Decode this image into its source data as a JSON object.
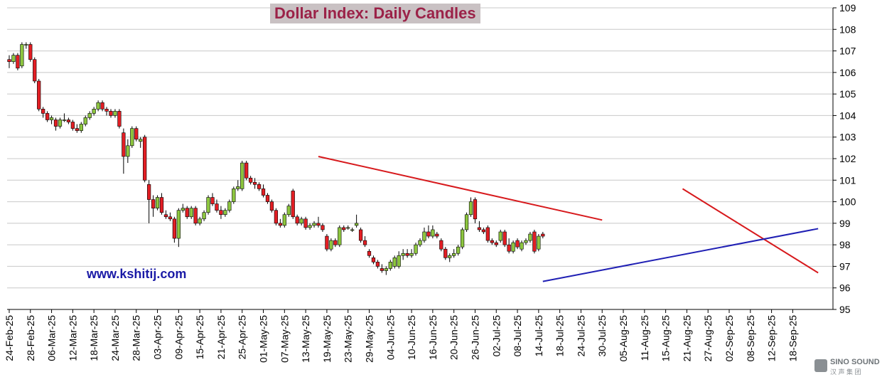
{
  "chart_data": {
    "type": "candlestick",
    "title": "Dollar Index: Daily Candles",
    "y_ticks": [
      95,
      96,
      97,
      98,
      99,
      100,
      101,
      102,
      103,
      104,
      105,
      106,
      107,
      108,
      109
    ],
    "ylim": [
      95,
      109
    ],
    "y_axis_position": "right",
    "x_tick_labels": [
      "24-Feb-25",
      "28-Feb-25",
      "06-Mar-25",
      "12-Mar-25",
      "18-Mar-25",
      "24-Mar-25",
      "28-Mar-25",
      "03-Apr-25",
      "09-Apr-25",
      "15-Apr-25",
      "21-Apr-25",
      "25-Apr-25",
      "01-May-25",
      "07-May-25",
      "13-May-25",
      "19-May-25",
      "23-May-25",
      "29-May-25",
      "04-Jun-25",
      "10-Jun-25",
      "16-Jun-25",
      "20-Jun-25",
      "26-Jun-25",
      "02-Jul-25",
      "08-Jul-25",
      "14-Jul-25",
      "18-Jul-25",
      "24-Jul-25",
      "30-Jul-25",
      "05-Aug-25",
      "11-Aug-25",
      "15-Aug-25",
      "21-Aug-25",
      "27-Aug-25",
      "02-Sep-25",
      "08-Sep-25",
      "12-Sep-25",
      "18-Sep-25"
    ],
    "grid": true,
    "colors": {
      "up": "#8dc63f",
      "down": "#e31e24",
      "resistance": "#d7191c",
      "support": "#1f1fb4",
      "grid": "#c8c8c8"
    },
    "candles": [
      [
        106.6,
        106.8,
        106.2,
        106.5
      ],
      [
        106.5,
        106.9,
        106.4,
        106.8
      ],
      [
        106.8,
        106.9,
        106.1,
        106.2
      ],
      [
        106.3,
        107.4,
        106.2,
        107.3
      ],
      [
        107.3,
        107.4,
        107.1,
        107.3
      ],
      [
        107.3,
        107.4,
        106.5,
        106.6
      ],
      [
        106.6,
        106.7,
        105.5,
        105.6
      ],
      [
        105.6,
        105.7,
        104.2,
        104.3
      ],
      [
        104.3,
        104.4,
        103.9,
        104.1
      ],
      [
        104.1,
        104.2,
        103.7,
        103.8
      ],
      [
        103.8,
        104.0,
        103.6,
        103.9
      ],
      [
        103.8,
        103.9,
        103.3,
        103.5
      ],
      [
        103.5,
        103.9,
        103.4,
        103.8
      ],
      [
        103.8,
        104.1,
        103.7,
        103.8
      ],
      [
        103.8,
        103.9,
        103.6,
        103.7
      ],
      [
        103.7,
        103.8,
        103.3,
        103.4
      ],
      [
        103.4,
        103.6,
        103.2,
        103.3
      ],
      [
        103.3,
        103.7,
        103.2,
        103.6
      ],
      [
        103.6,
        104.0,
        103.5,
        103.9
      ],
      [
        103.9,
        104.2,
        103.8,
        104.1
      ],
      [
        104.1,
        104.4,
        104.0,
        104.3
      ],
      [
        104.3,
        104.7,
        104.2,
        104.6
      ],
      [
        104.6,
        104.7,
        104.2,
        104.3
      ],
      [
        104.3,
        104.4,
        104.0,
        104.2
      ],
      [
        104.2,
        104.3,
        103.9,
        104.0
      ],
      [
        104.0,
        104.3,
        103.9,
        104.2
      ],
      [
        104.2,
        104.3,
        103.4,
        103.5
      ],
      [
        103.2,
        103.4,
        101.3,
        102.1
      ],
      [
        102.1,
        102.9,
        101.8,
        102.6
      ],
      [
        102.6,
        103.5,
        102.5,
        103.4
      ],
      [
        103.4,
        103.5,
        102.8,
        102.9
      ],
      [
        102.8,
        103.0,
        102.5,
        102.9
      ],
      [
        103.0,
        103.1,
        100.9,
        101.0
      ],
      [
        100.8,
        101.0,
        99.0,
        100.1
      ],
      [
        100.1,
        100.3,
        99.3,
        99.7
      ],
      [
        99.7,
        100.3,
        99.6,
        100.2
      ],
      [
        100.2,
        100.4,
        99.4,
        99.5
      ],
      [
        99.4,
        99.6,
        99.2,
        99.3
      ],
      [
        99.3,
        99.5,
        99.1,
        99.2
      ],
      [
        99.2,
        99.3,
        98.1,
        98.3
      ],
      [
        98.3,
        99.7,
        97.9,
        99.6
      ],
      [
        99.6,
        99.9,
        99.5,
        99.7
      ],
      [
        99.7,
        99.8,
        99.2,
        99.3
      ],
      [
        99.3,
        99.8,
        99.2,
        99.7
      ],
      [
        99.7,
        99.8,
        98.9,
        99.0
      ],
      [
        99.0,
        99.3,
        98.9,
        99.2
      ],
      [
        99.2,
        99.6,
        99.1,
        99.5
      ],
      [
        99.5,
        100.3,
        99.4,
        100.2
      ],
      [
        100.2,
        100.4,
        99.8,
        99.9
      ],
      [
        99.9,
        100.1,
        99.5,
        99.6
      ],
      [
        99.6,
        99.8,
        99.2,
        99.4
      ],
      [
        99.4,
        99.7,
        99.3,
        99.6
      ],
      [
        99.6,
        100.1,
        99.5,
        100.0
      ],
      [
        100.0,
        100.7,
        99.9,
        100.6
      ],
      [
        100.6,
        101.0,
        100.5,
        100.7
      ],
      [
        100.6,
        101.9,
        100.5,
        101.8
      ],
      [
        101.8,
        101.9,
        101.0,
        101.1
      ],
      [
        101.1,
        101.2,
        100.8,
        100.9
      ],
      [
        100.9,
        101.1,
        100.6,
        100.8
      ],
      [
        100.8,
        100.9,
        100.5,
        100.6
      ],
      [
        100.6,
        100.8,
        100.2,
        100.3
      ],
      [
        100.3,
        100.4,
        99.9,
        100.0
      ],
      [
        100.0,
        100.1,
        99.5,
        99.6
      ],
      [
        99.6,
        99.7,
        98.9,
        99.0
      ],
      [
        99.0,
        99.2,
        98.8,
        98.9
      ],
      [
        98.9,
        99.5,
        98.8,
        99.4
      ],
      [
        99.4,
        99.9,
        99.3,
        99.8
      ],
      [
        100.5,
        100.6,
        99.2,
        99.3
      ],
      [
        99.3,
        99.4,
        98.9,
        99.0
      ],
      [
        99.0,
        99.3,
        98.9,
        99.2
      ],
      [
        99.2,
        99.3,
        98.7,
        98.8
      ],
      [
        98.8,
        99.0,
        98.7,
        98.9
      ],
      [
        98.9,
        99.1,
        98.8,
        99.0
      ],
      [
        99.0,
        99.3,
        98.8,
        98.9
      ],
      [
        98.9,
        99.0,
        98.6,
        98.7
      ],
      [
        98.4,
        98.5,
        97.7,
        97.8
      ],
      [
        97.8,
        98.3,
        97.7,
        98.2
      ],
      [
        98.2,
        98.3,
        97.9,
        98.0
      ],
      [
        98.0,
        98.9,
        97.9,
        98.8
      ],
      [
        98.8,
        98.9,
        98.6,
        98.7
      ],
      [
        98.8,
        98.9,
        98.7,
        98.8
      ],
      [
        98.7,
        98.8,
        98.6,
        98.7
      ],
      [
        98.9,
        99.4,
        98.8,
        99.0
      ],
      [
        98.7,
        98.8,
        98.1,
        98.2
      ],
      [
        98.2,
        98.4,
        97.9,
        98.0
      ],
      [
        97.7,
        97.8,
        97.4,
        97.5
      ],
      [
        97.4,
        97.5,
        97.1,
        97.2
      ],
      [
        97.2,
        97.3,
        96.9,
        97.0
      ],
      [
        96.9,
        97.1,
        96.7,
        96.8
      ],
      [
        96.8,
        97.0,
        96.6,
        96.9
      ],
      [
        96.9,
        97.3,
        96.8,
        97.2
      ],
      [
        97.0,
        97.5,
        96.9,
        97.4
      ],
      [
        97.0,
        97.7,
        96.9,
        97.5
      ],
      [
        97.5,
        97.8,
        97.3,
        97.6
      ],
      [
        97.6,
        97.8,
        97.4,
        97.5
      ],
      [
        97.5,
        97.8,
        97.4,
        97.6
      ],
      [
        97.6,
        98.1,
        97.5,
        98.0
      ],
      [
        98.0,
        98.3,
        97.9,
        98.2
      ],
      [
        98.2,
        98.8,
        98.1,
        98.6
      ],
      [
        98.6,
        98.9,
        98.3,
        98.4
      ],
      [
        98.4,
        98.9,
        98.3,
        98.7
      ],
      [
        98.5,
        98.6,
        98.3,
        98.4
      ],
      [
        98.2,
        98.3,
        97.7,
        97.8
      ],
      [
        97.8,
        97.9,
        97.3,
        97.4
      ],
      [
        97.4,
        97.6,
        97.2,
        97.5
      ],
      [
        97.5,
        97.8,
        97.4,
        97.6
      ],
      [
        97.6,
        98.0,
        97.5,
        97.9
      ],
      [
        97.9,
        98.8,
        97.8,
        98.7
      ],
      [
        98.7,
        99.5,
        98.6,
        99.4
      ],
      [
        99.4,
        100.2,
        99.3,
        100.0
      ],
      [
        100.1,
        100.2,
        99.0,
        99.2
      ],
      [
        98.8,
        99.1,
        98.6,
        98.7
      ],
      [
        98.7,
        98.8,
        98.5,
        98.6
      ],
      [
        98.8,
        98.9,
        98.1,
        98.2
      ],
      [
        98.2,
        98.3,
        98.0,
        98.1
      ],
      [
        98.1,
        98.2,
        97.9,
        98.0
      ],
      [
        98.2,
        98.7,
        98.1,
        98.6
      ],
      [
        98.6,
        98.7,
        97.9,
        98.0
      ],
      [
        98.0,
        98.3,
        97.6,
        97.7
      ],
      [
        97.7,
        98.2,
        97.6,
        98.1
      ],
      [
        98.2,
        98.3,
        97.8,
        97.9
      ],
      [
        97.8,
        98.2,
        97.7,
        98.1
      ],
      [
        98.1,
        98.3,
        98.0,
        98.2
      ],
      [
        98.2,
        98.6,
        98.1,
        98.5
      ],
      [
        98.6,
        98.7,
        97.6,
        97.7
      ],
      [
        97.8,
        98.5,
        97.7,
        98.4
      ],
      [
        98.5,
        98.6,
        98.3,
        98.4
      ]
    ],
    "trendlines": [
      {
        "role": "resistance",
        "from": {
          "candle": 73,
          "price": 102.1
        },
        "to": {
          "candle": 140,
          "price": 99.15
        }
      },
      {
        "role": "resistance",
        "from": {
          "candle": 159,
          "price": 100.6
        },
        "to": {
          "candle": 191,
          "price": 96.7
        }
      },
      {
        "role": "support",
        "from": {
          "candle": 126,
          "price": 96.3
        },
        "to": {
          "candle": 191,
          "price": 98.75
        }
      }
    ]
  },
  "watermark_url": "www.kshitij.com",
  "logo": {
    "brand": "SINO SOUND",
    "sub": "汉 声 集 团"
  }
}
